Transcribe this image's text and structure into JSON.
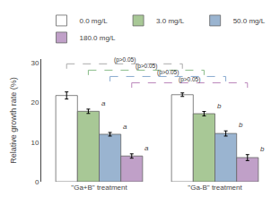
{
  "chart_data": {
    "type": "bar",
    "categories": [
      "\"Ga+B\" treatment",
      "\"Ga-B\" treatment"
    ],
    "series": [
      {
        "name": "0.0 mg/L",
        "color": "#ffffff",
        "values": [
          21.8,
          22.0
        ],
        "errors": [
          0.9,
          0.45
        ],
        "bracket": {
          "y": 29.8,
          "color": "#aaaaaa",
          "label": "(p>0.05)"
        }
      },
      {
        "name": "3.0 mg/L",
        "color": "#a8c896",
        "values": [
          17.8,
          17.2
        ],
        "errors": [
          0.55,
          0.55
        ],
        "labels": [
          "a",
          "b"
        ],
        "bracket": {
          "y": 28.2,
          "color": "#88bb88",
          "label": "(p>0.05)"
        }
      },
      {
        "name": "50.0 mg/L",
        "color": "#9ab4d0",
        "values": [
          12.0,
          12.2
        ],
        "errors": [
          0.45,
          0.65
        ],
        "labels": [
          "a",
          "b"
        ],
        "bracket": {
          "y": 26.6,
          "color": "#88aad0",
          "label": "(p>0.05)"
        }
      },
      {
        "name": "180.0 mg/L",
        "color": "#c0a0c8",
        "values": [
          6.5,
          6.1
        ],
        "errors": [
          0.55,
          0.75
        ],
        "labels": [
          "a",
          "b"
        ],
        "bracket": {
          "y": 25.0,
          "color": "#bb88bb",
          "label": "(p>0.05)"
        }
      }
    ],
    "ylabel": "Relative growth rate (%)",
    "ylim": [
      0,
      31
    ],
    "yticks": [
      0,
      10,
      20,
      30
    ],
    "grid": false,
    "legend": "top"
  }
}
